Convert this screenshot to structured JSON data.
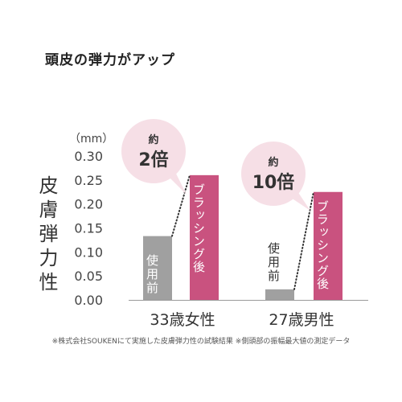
{
  "title": "頭皮の弾力がアップ",
  "footnote": "※株式会社SOUKENにて実施した皮膚弾力性の試験結果 ※側頭部の振幅最大値の測定データ",
  "colors": {
    "before": "#a0a0a0",
    "after": "#c9527f",
    "bubble": "#f6dfe6",
    "dots": "#333333"
  },
  "chart_data": {
    "type": "bar",
    "unit_label": "（mm）",
    "ylabel": "皮膚弾力性",
    "ylim": [
      0,
      0.3
    ],
    "yticks": [
      "0.30",
      "0.25",
      "0.20",
      "0.15",
      "0.10",
      "0.05",
      "0.00"
    ],
    "categories": [
      "33歳女性",
      "27歳男性"
    ],
    "series": [
      {
        "name": "使用前",
        "values": [
          0.133,
          0.022
        ]
      },
      {
        "name": "ブラッシング後",
        "values": [
          0.26,
          0.225
        ]
      }
    ],
    "annotations": [
      {
        "top": "約",
        "main": "2倍"
      },
      {
        "top": "約",
        "main": "10倍"
      }
    ]
  }
}
